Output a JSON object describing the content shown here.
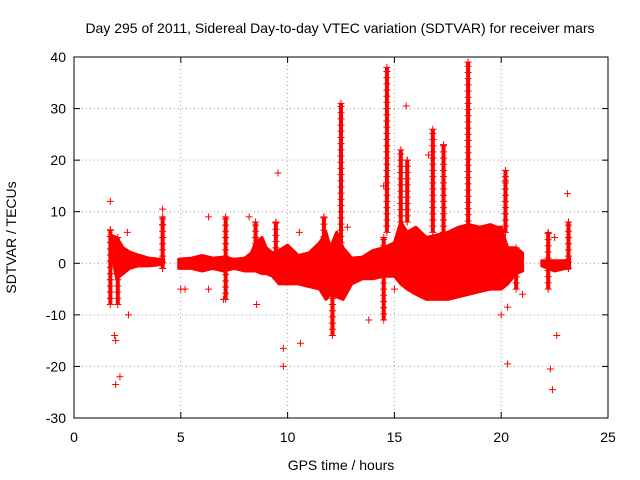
{
  "chart_data": {
    "type": "scatter",
    "title": "Day 295 of 2011, Sidereal Day-to-day VTEC variation (SDTVAR) for receiver mars",
    "xlabel": "GPS time / hours",
    "ylabel": "SDTVAR / TECUs",
    "xlim": [
      0,
      25
    ],
    "ylim": [
      -30,
      40
    ],
    "xticks": [
      0,
      5,
      10,
      15,
      20,
      25
    ],
    "yticks": [
      -30,
      -20,
      -10,
      0,
      10,
      20,
      30,
      40
    ],
    "grid": true,
    "marker": "+",
    "color": "#ff0000",
    "band_upper": [
      [
        1.7,
        5.5
      ],
      [
        2.0,
        5.0
      ],
      [
        2.3,
        3.0
      ],
      [
        2.6,
        2.2
      ],
      [
        3.0,
        1.6
      ],
      [
        3.5,
        1.0
      ],
      [
        4.0,
        0.8
      ],
      [
        4.2,
        0.8
      ],
      [
        4.25,
        null
      ],
      [
        4.9,
        0.8
      ],
      [
        5.5,
        1.0
      ],
      [
        6.0,
        1.5
      ],
      [
        6.5,
        1.0
      ],
      [
        7.0,
        1.2
      ],
      [
        7.5,
        0.8
      ],
      [
        8.0,
        1.0
      ],
      [
        8.3,
        2.0
      ],
      [
        8.5,
        4.0
      ],
      [
        8.8,
        5.0
      ],
      [
        9.0,
        3.0
      ],
      [
        9.3,
        2.0
      ],
      [
        9.6,
        2.5
      ],
      [
        10.0,
        3.5
      ],
      [
        10.5,
        1.5
      ],
      [
        11.0,
        2.0
      ],
      [
        11.5,
        4.0
      ],
      [
        11.8,
        6.0
      ],
      [
        12.0,
        3.0
      ],
      [
        12.3,
        6.0
      ],
      [
        12.6,
        3.0
      ],
      [
        13.0,
        1.0
      ],
      [
        13.5,
        1.2
      ],
      [
        14.0,
        2.5
      ],
      [
        14.5,
        3.0
      ],
      [
        15.0,
        4.0
      ],
      [
        15.3,
        8.0
      ],
      [
        15.6,
        6.0
      ],
      [
        16.0,
        7.0
      ],
      [
        16.5,
        5.0
      ],
      [
        17.0,
        5.5
      ],
      [
        17.5,
        6.0
      ],
      [
        18.0,
        7.0
      ],
      [
        18.5,
        7.5
      ],
      [
        19.0,
        7.0
      ],
      [
        19.5,
        7.5
      ],
      [
        19.8,
        7.0
      ],
      [
        20.0,
        7.0
      ],
      [
        20.3,
        3.0
      ],
      [
        20.7,
        3.0
      ],
      [
        21.0,
        2.0
      ],
      [
        21.15,
        null
      ],
      [
        21.9,
        0.5
      ],
      [
        22.5,
        0.5
      ],
      [
        23.0,
        0.5
      ],
      [
        23.2,
        1.0
      ]
    ],
    "band_lower": [
      [
        1.7,
        3.0
      ],
      [
        2.0,
        -3.0
      ],
      [
        2.3,
        -2.0
      ],
      [
        2.6,
        -1.0
      ],
      [
        3.0,
        -0.5
      ],
      [
        3.5,
        -0.5
      ],
      [
        4.0,
        -0.3
      ],
      [
        4.2,
        0.0
      ],
      [
        4.25,
        null
      ],
      [
        4.9,
        -1.0
      ],
      [
        5.5,
        -1.0
      ],
      [
        6.0,
        -1.5
      ],
      [
        6.5,
        -1.0
      ],
      [
        7.0,
        -1.5
      ],
      [
        7.5,
        -1.0
      ],
      [
        8.0,
        -1.5
      ],
      [
        8.3,
        -1.5
      ],
      [
        8.5,
        -1.5
      ],
      [
        8.8,
        -2.0
      ],
      [
        9.0,
        -2.0
      ],
      [
        9.3,
        -2.5
      ],
      [
        9.6,
        -4.0
      ],
      [
        10.0,
        -4.0
      ],
      [
        10.5,
        -4.0
      ],
      [
        11.0,
        -4.5
      ],
      [
        11.5,
        -5.0
      ],
      [
        11.8,
        -7.0
      ],
      [
        12.0,
        -6.0
      ],
      [
        12.3,
        -6.5
      ],
      [
        12.6,
        -7.0
      ],
      [
        13.0,
        -4.0
      ],
      [
        13.5,
        -3.0
      ],
      [
        14.0,
        -3.0
      ],
      [
        14.5,
        -2.5
      ],
      [
        15.0,
        -2.5
      ],
      [
        15.3,
        -4.0
      ],
      [
        15.6,
        -5.0
      ],
      [
        16.0,
        -6.0
      ],
      [
        16.5,
        -7.0
      ],
      [
        17.0,
        -7.0
      ],
      [
        17.5,
        -7.0
      ],
      [
        18.0,
        -6.5
      ],
      [
        18.5,
        -6.0
      ],
      [
        19.0,
        -5.5
      ],
      [
        19.5,
        -5.0
      ],
      [
        19.8,
        -5.0
      ],
      [
        20.0,
        -5.0
      ],
      [
        20.3,
        -4.0
      ],
      [
        20.7,
        -2.0
      ],
      [
        21.0,
        -1.5
      ],
      [
        21.15,
        null
      ],
      [
        21.9,
        -0.5
      ],
      [
        22.5,
        -1.5
      ],
      [
        23.0,
        -1.0
      ],
      [
        23.2,
        -1.0
      ]
    ],
    "spikes": [
      [
        1.7,
        -8,
        6.5
      ],
      [
        2.05,
        -8,
        5
      ],
      [
        4.15,
        -1,
        9
      ],
      [
        7.1,
        -7,
        9
      ],
      [
        8.5,
        -1,
        8
      ],
      [
        9.45,
        -3,
        8
      ],
      [
        11.7,
        -2,
        9
      ],
      [
        12.1,
        -14,
        -5
      ],
      [
        12.5,
        4,
        31
      ],
      [
        14.5,
        -11,
        5
      ],
      [
        14.65,
        6,
        38
      ],
      [
        15.3,
        8,
        22
      ],
      [
        15.6,
        8,
        20
      ],
      [
        16.8,
        6,
        26
      ],
      [
        17.3,
        6,
        23
      ],
      [
        18.45,
        7,
        39
      ],
      [
        20.2,
        6,
        18
      ],
      [
        20.7,
        -5,
        3
      ],
      [
        22.2,
        -5,
        6
      ],
      [
        23.15,
        -1,
        8
      ]
    ],
    "outliers": [
      [
        1.7,
        12
      ],
      [
        1.9,
        -14
      ],
      [
        1.95,
        -15
      ],
      [
        1.95,
        -23.5
      ],
      [
        2.15,
        -22
      ],
      [
        2.5,
        6
      ],
      [
        2.55,
        -10
      ],
      [
        4.15,
        10.5
      ],
      [
        4.15,
        7.5
      ],
      [
        5.0,
        -5
      ],
      [
        5.2,
        -5
      ],
      [
        6.3,
        9
      ],
      [
        6.3,
        -5
      ],
      [
        7.0,
        -7
      ],
      [
        8.2,
        9
      ],
      [
        8.55,
        -8
      ],
      [
        9.55,
        17.5
      ],
      [
        9.8,
        -16.5
      ],
      [
        9.8,
        -20
      ],
      [
        10.6,
        -15.5
      ],
      [
        10.55,
        6
      ],
      [
        12.8,
        7
      ],
      [
        13.8,
        -11
      ],
      [
        14.5,
        15
      ],
      [
        15.0,
        -5
      ],
      [
        15.55,
        30.5
      ],
      [
        16.6,
        21
      ],
      [
        20.0,
        -10
      ],
      [
        20.3,
        -19.5
      ],
      [
        20.3,
        -8.5
      ],
      [
        20.2,
        16
      ],
      [
        21.0,
        -6
      ],
      [
        22.3,
        -20.5
      ],
      [
        22.4,
        -24.5
      ],
      [
        22.6,
        -14
      ],
      [
        22.5,
        5
      ],
      [
        23.1,
        13.5
      ]
    ]
  }
}
